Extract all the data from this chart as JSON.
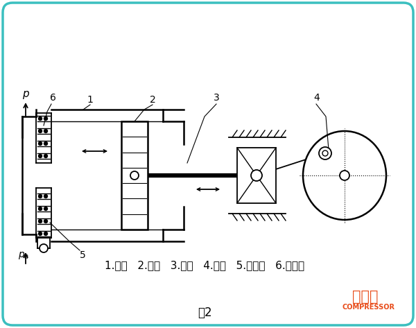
{
  "title": "图2",
  "caption": "1.气缸   2.活塞   3.连杆   4.曲柄   5.进气阀   6.出气阀",
  "bg_color": "#ffffff",
  "border_color": "#3bbfbf",
  "watermark_zh": "压缩机",
  "watermark_en": "COMPRESSOR"
}
